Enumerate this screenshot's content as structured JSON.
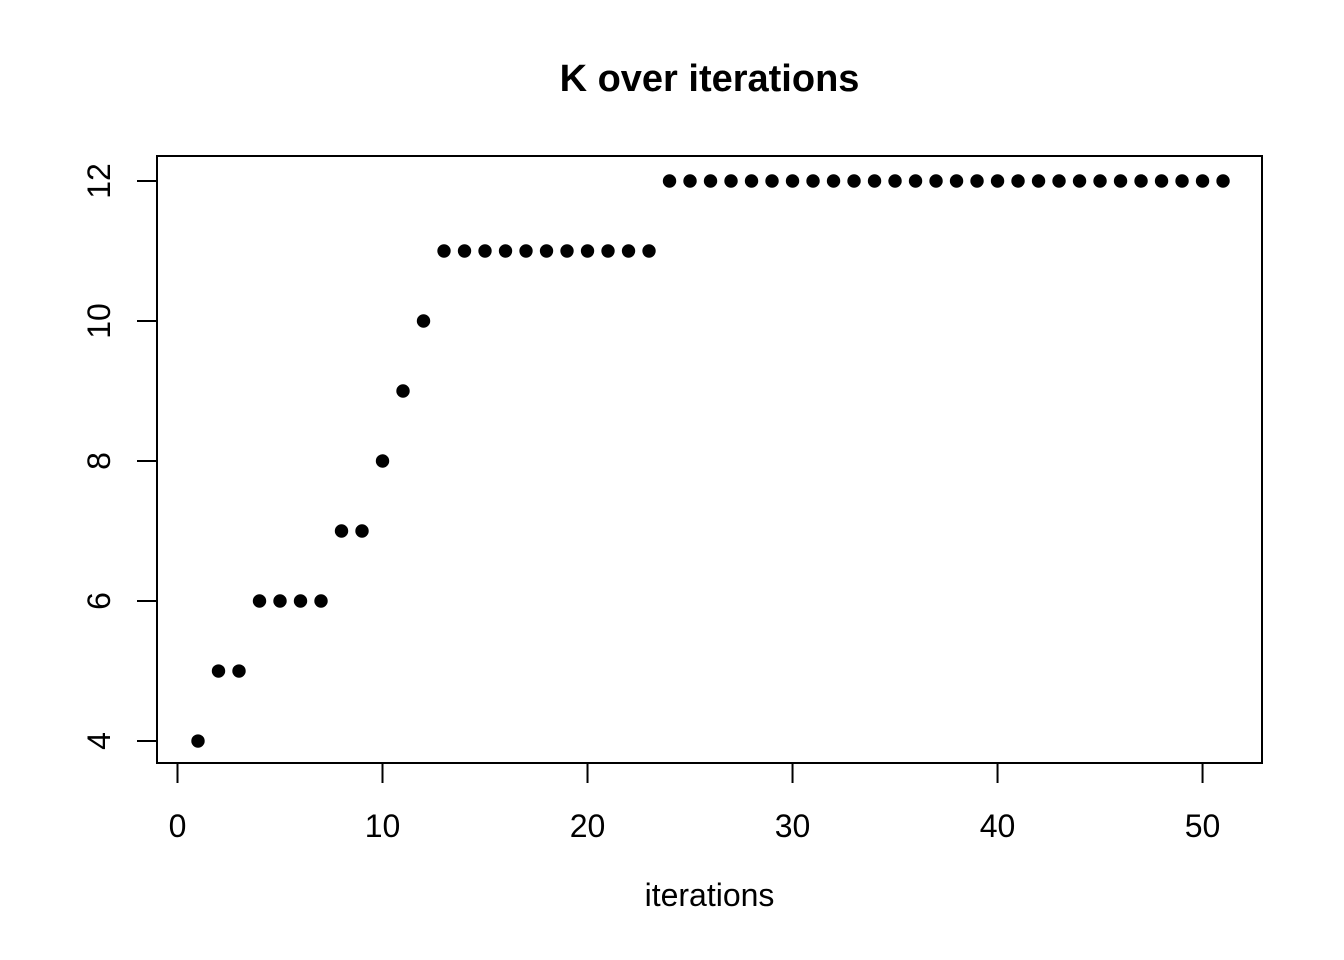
{
  "page": {
    "background_color": "#ffffff",
    "foreground_color": "#000000"
  },
  "chart_data": {
    "type": "scatter",
    "title": "K over iterations",
    "xlabel": "iterations",
    "ylabel": "",
    "grid": false,
    "legend": "none",
    "point_color": "#000000",
    "point_shape": "filled-circle",
    "x_ticks": [
      0,
      10,
      20,
      30,
      40,
      50
    ],
    "y_ticks": [
      4,
      6,
      8,
      10,
      12
    ],
    "xlim": [
      -1.0,
      52.9
    ],
    "ylim": [
      3.686,
      12.357
    ],
    "series": [
      {
        "name": "K",
        "x": [
          1,
          2,
          3,
          4,
          5,
          6,
          7,
          8,
          9,
          10,
          11,
          12,
          13,
          14,
          15,
          16,
          17,
          18,
          19,
          20,
          21,
          22,
          23,
          24,
          25,
          26,
          27,
          28,
          29,
          30,
          31,
          32,
          33,
          34,
          35,
          36,
          37,
          38,
          39,
          40,
          41,
          42,
          43,
          44,
          45,
          46,
          47,
          48,
          49,
          50,
          51
        ],
        "y": [
          4,
          5,
          5,
          6,
          6,
          6,
          6,
          7,
          7,
          8,
          9,
          10,
          11,
          11,
          11,
          11,
          11,
          11,
          11,
          11,
          11,
          11,
          11,
          12,
          12,
          12,
          12,
          12,
          12,
          12,
          12,
          12,
          12,
          12,
          12,
          12,
          12,
          12,
          12,
          12,
          12,
          12,
          12,
          12,
          12,
          12,
          12,
          12,
          12,
          12,
          12
        ]
      }
    ]
  }
}
